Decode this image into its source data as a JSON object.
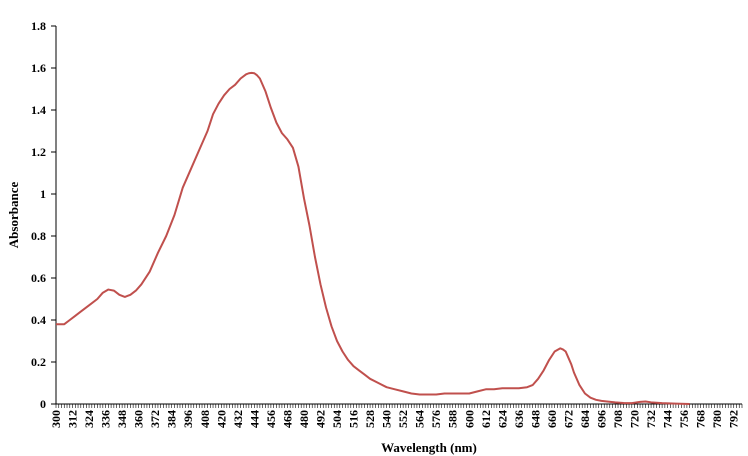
{
  "chart_data": {
    "type": "line",
    "title": "",
    "xlabel": "Wavelength (nm)",
    "ylabel": "Absorbance",
    "xlim": [
      300,
      798
    ],
    "ylim": [
      0,
      1.8
    ],
    "grid": false,
    "legend": "none",
    "y_ticks": [
      "0",
      "0.2",
      "0.4",
      "0.6",
      "0.8",
      "1",
      "1.2",
      "1.4",
      "1.6",
      "1.8"
    ],
    "x_ticks": [
      "300",
      "312",
      "324",
      "336",
      "348",
      "360",
      "372",
      "384",
      "396",
      "408",
      "420",
      "432",
      "444",
      "456",
      "468",
      "480",
      "492",
      "504",
      "516",
      "528",
      "540",
      "552",
      "564",
      "576",
      "588",
      "600",
      "612",
      "624",
      "636",
      "648",
      "660",
      "672",
      "684",
      "696",
      "708",
      "720",
      "732",
      "744",
      "756",
      "768",
      "780",
      "792"
    ],
    "line_color": "#C0504D",
    "series": [
      {
        "x": [
          300,
          306,
          310,
          314,
          318,
          324,
          330,
          334,
          338,
          342,
          346,
          350,
          354,
          358,
          362,
          368,
          374,
          380,
          386,
          392,
          398,
          404,
          410,
          414,
          418,
          422,
          426,
          430,
          434,
          438,
          440,
          442,
          444,
          446,
          448,
          452,
          456,
          460,
          464,
          468,
          472,
          476,
          480,
          484,
          488,
          492,
          496,
          500,
          504,
          508,
          512,
          516,
          520,
          524,
          528,
          534,
          540,
          546,
          552,
          558,
          564,
          570,
          576,
          582,
          588,
          594,
          600,
          606,
          612,
          618,
          624,
          630,
          636,
          642,
          646,
          650,
          654,
          658,
          662,
          666,
          668,
          670,
          672,
          674,
          676,
          680,
          684,
          688,
          692,
          696,
          700,
          706,
          712,
          718,
          724,
          728,
          732,
          740,
          750,
          760
        ],
        "values": [
          0.38,
          0.38,
          0.4,
          0.42,
          0.44,
          0.47,
          0.5,
          0.53,
          0.545,
          0.54,
          0.52,
          0.51,
          0.52,
          0.54,
          0.57,
          0.63,
          0.72,
          0.8,
          0.9,
          1.03,
          1.12,
          1.21,
          1.3,
          1.38,
          1.43,
          1.47,
          1.5,
          1.52,
          1.55,
          1.57,
          1.575,
          1.577,
          1.575,
          1.565,
          1.55,
          1.49,
          1.41,
          1.34,
          1.29,
          1.26,
          1.22,
          1.13,
          0.98,
          0.85,
          0.7,
          0.57,
          0.46,
          0.37,
          0.3,
          0.25,
          0.21,
          0.18,
          0.16,
          0.14,
          0.12,
          0.1,
          0.08,
          0.07,
          0.06,
          0.05,
          0.045,
          0.045,
          0.045,
          0.05,
          0.05,
          0.05,
          0.05,
          0.06,
          0.07,
          0.07,
          0.075,
          0.075,
          0.075,
          0.08,
          0.09,
          0.12,
          0.16,
          0.21,
          0.25,
          0.265,
          0.26,
          0.25,
          0.22,
          0.19,
          0.15,
          0.09,
          0.05,
          0.03,
          0.02,
          0.015,
          0.012,
          0.008,
          0.005,
          0.004,
          0.01,
          0.012,
          0.008,
          0.004,
          0.002,
          0.0
        ]
      }
    ]
  }
}
